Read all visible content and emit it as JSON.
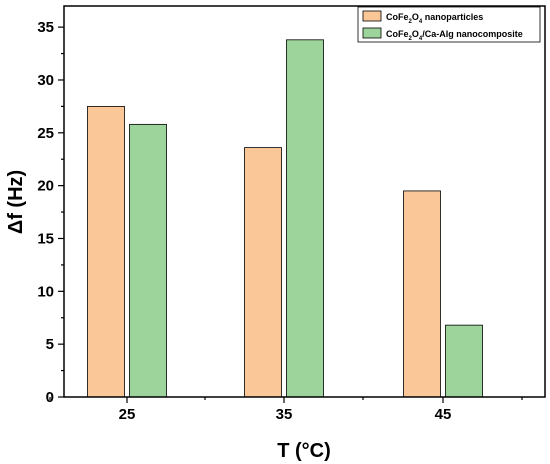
{
  "chart_data": {
    "type": "bar",
    "xlabel": "T (°C)",
    "ylabel": "Δf (Hz)",
    "categories": [
      "25",
      "35",
      "45"
    ],
    "ylim": [
      0,
      37
    ],
    "yticks": [
      0,
      5,
      10,
      15,
      20,
      25,
      30,
      35
    ],
    "grid": false,
    "legend_position": "top-right",
    "series": [
      {
        "name": "CoFe2O4 nanoparticles",
        "values": [
          27.5,
          23.6,
          19.5
        ],
        "color": "#fac898"
      },
      {
        "name": "CoFe2O4/Ca-Alg nanocomposite",
        "values": [
          25.8,
          33.8,
          6.8
        ],
        "color": "#9cd49c"
      }
    ]
  }
}
